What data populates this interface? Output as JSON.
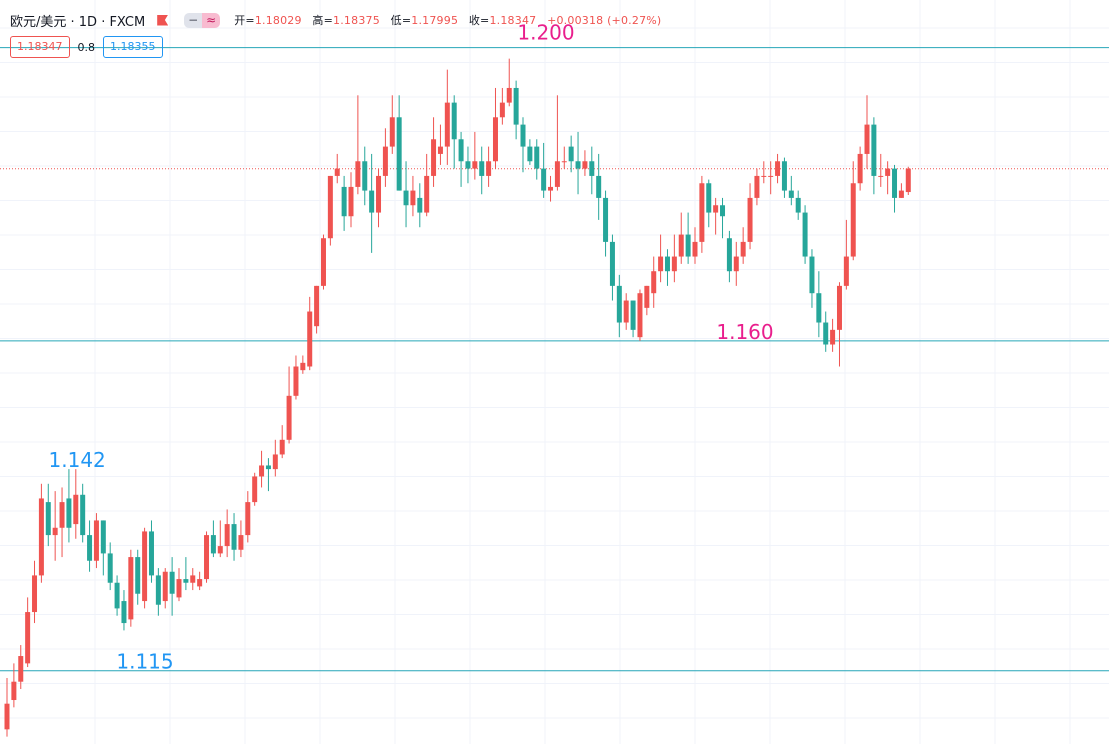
{
  "header": {
    "symbol": "欧元/美元 · 1D · FXCM",
    "ohlc": {
      "open_label": "开=",
      "open": "1.18029",
      "high_label": "高=",
      "high": "1.18375",
      "low_label": "低=",
      "low": "1.17995",
      "close_label": "收=",
      "close": "1.18347",
      "change": "+0.00318 (+0.27%)"
    }
  },
  "quote": {
    "bid": "1.18347",
    "spread": "0.8",
    "ask": "1.18355"
  },
  "icons": {
    "flag": "flag-icon",
    "hide": "minus-icon",
    "compare": "wave-icon"
  },
  "colors": {
    "up": "#ef5350",
    "down": "#26a69a",
    "level_line": "#26a6b8",
    "magenta_label": "#e91e8c",
    "blue_label": "#2196f3"
  },
  "chart_data": {
    "type": "candlestick",
    "y_range": [
      1.105,
      1.2065
    ],
    "current_price": 1.18347,
    "levels": [
      {
        "value": 1.2,
        "label": "1.200",
        "color": "#e91e8c"
      },
      {
        "value": 1.16,
        "label": "1.160",
        "color": "#e91e8c"
      },
      {
        "value": 1.115,
        "label": "1.115",
        "color": "#2196f3"
      }
    ],
    "annotations": [
      {
        "label": "1.142",
        "value": 1.142,
        "index": 7,
        "color": "#2196f3"
      }
    ],
    "candles": [
      [
        1.107,
        1.1105,
        1.106,
        1.114
      ],
      [
        1.111,
        1.1135,
        1.11,
        1.116
      ],
      [
        1.1135,
        1.117,
        1.1125,
        1.1185
      ],
      [
        1.116,
        1.123,
        1.1155,
        1.125
      ],
      [
        1.123,
        1.128,
        1.1215,
        1.13
      ],
      [
        1.128,
        1.1385,
        1.127,
        1.1405
      ],
      [
        1.138,
        1.1335,
        1.132,
        1.1405
      ],
      [
        1.1335,
        1.1345,
        1.13,
        1.1395
      ],
      [
        1.1345,
        1.138,
        1.1305,
        1.14
      ],
      [
        1.1385,
        1.1345,
        1.1325,
        1.1425
      ],
      [
        1.135,
        1.139,
        1.133,
        1.1425
      ],
      [
        1.139,
        1.1335,
        1.1325,
        1.1405
      ],
      [
        1.1335,
        1.13,
        1.1285,
        1.1355
      ],
      [
        1.13,
        1.1355,
        1.129,
        1.1365
      ],
      [
        1.1355,
        1.131,
        1.128,
        1.1355
      ],
      [
        1.131,
        1.127,
        1.126,
        1.1325
      ],
      [
        1.127,
        1.1235,
        1.1225,
        1.128
      ],
      [
        1.1245,
        1.1215,
        1.1205,
        1.126
      ],
      [
        1.122,
        1.1305,
        1.121,
        1.1315
      ],
      [
        1.1305,
        1.1255,
        1.124,
        1.1315
      ],
      [
        1.1245,
        1.134,
        1.1235,
        1.1345
      ],
      [
        1.134,
        1.128,
        1.127,
        1.1355
      ],
      [
        1.128,
        1.124,
        1.1225,
        1.129
      ],
      [
        1.1245,
        1.1285,
        1.1235,
        1.129
      ],
      [
        1.1285,
        1.1255,
        1.1225,
        1.1305
      ],
      [
        1.125,
        1.1275,
        1.1245,
        1.129
      ],
      [
        1.1275,
        1.127,
        1.126,
        1.1305
      ],
      [
        1.127,
        1.128,
        1.126,
        1.129
      ],
      [
        1.1265,
        1.1275,
        1.126,
        1.1285
      ],
      [
        1.1275,
        1.1335,
        1.127,
        1.134
      ],
      [
        1.1335,
        1.131,
        1.1305,
        1.1355
      ],
      [
        1.131,
        1.132,
        1.1305,
        1.1355
      ],
      [
        1.132,
        1.135,
        1.1305,
        1.137
      ],
      [
        1.135,
        1.1315,
        1.13,
        1.1365
      ],
      [
        1.1315,
        1.1335,
        1.1305,
        1.1355
      ],
      [
        1.1335,
        1.138,
        1.1325,
        1.1395
      ],
      [
        1.138,
        1.1415,
        1.1375,
        1.142
      ],
      [
        1.1415,
        1.143,
        1.14,
        1.145
      ],
      [
        1.143,
        1.1425,
        1.1395,
        1.144
      ],
      [
        1.1425,
        1.1445,
        1.1415,
        1.1465
      ],
      [
        1.1445,
        1.1465,
        1.144,
        1.1485
      ],
      [
        1.1465,
        1.1525,
        1.146,
        1.1565
      ],
      [
        1.1525,
        1.1565,
        1.152,
        1.158
      ],
      [
        1.156,
        1.157,
        1.1555,
        1.158
      ],
      [
        1.1565,
        1.164,
        1.156,
        1.166
      ],
      [
        1.162,
        1.1675,
        1.161,
        1.1675
      ],
      [
        1.1675,
        1.174,
        1.167,
        1.1745
      ],
      [
        1.174,
        1.1825,
        1.173,
        1.1825
      ],
      [
        1.1825,
        1.1835,
        1.1815,
        1.1855
      ],
      [
        1.181,
        1.177,
        1.175,
        1.1825
      ],
      [
        1.177,
        1.181,
        1.1755,
        1.183
      ],
      [
        1.181,
        1.1845,
        1.18,
        1.1935
      ],
      [
        1.1845,
        1.1805,
        1.1785,
        1.1865
      ],
      [
        1.1805,
        1.1775,
        1.172,
        1.1855
      ],
      [
        1.1775,
        1.1825,
        1.1755,
        1.1835
      ],
      [
        1.1825,
        1.1865,
        1.181,
        1.189
      ],
      [
        1.1865,
        1.1905,
        1.1855,
        1.1935
      ],
      [
        1.1905,
        1.1805,
        1.1805,
        1.1935
      ],
      [
        1.1805,
        1.1785,
        1.1755,
        1.1845
      ],
      [
        1.1785,
        1.1805,
        1.177,
        1.1825
      ],
      [
        1.1795,
        1.1775,
        1.1755,
        1.1815
      ],
      [
        1.1775,
        1.1825,
        1.177,
        1.1855
      ],
      [
        1.1825,
        1.1875,
        1.181,
        1.1905
      ],
      [
        1.1855,
        1.1865,
        1.184,
        1.1895
      ],
      [
        1.1865,
        1.1925,
        1.184,
        1.197
      ],
      [
        1.1925,
        1.1875,
        1.1835,
        1.1935
      ],
      [
        1.1875,
        1.1845,
        1.181,
        1.1885
      ],
      [
        1.1845,
        1.1835,
        1.1815,
        1.1865
      ],
      [
        1.1835,
        1.1845,
        1.182,
        1.1885
      ],
      [
        1.1845,
        1.1825,
        1.18,
        1.1865
      ],
      [
        1.1825,
        1.1845,
        1.181,
        1.1865
      ],
      [
        1.1845,
        1.1905,
        1.1835,
        1.1945
      ],
      [
        1.1905,
        1.1925,
        1.1895,
        1.1945
      ],
      [
        1.1925,
        1.1945,
        1.192,
        1.1985
      ],
      [
        1.1945,
        1.1895,
        1.1875,
        1.1955
      ],
      [
        1.1895,
        1.1865,
        1.183,
        1.1905
      ],
      [
        1.1865,
        1.1845,
        1.184,
        1.1875
      ],
      [
        1.1865,
        1.1835,
        1.182,
        1.1875
      ],
      [
        1.1835,
        1.1805,
        1.1795,
        1.187
      ],
      [
        1.1805,
        1.181,
        1.179,
        1.1825
      ],
      [
        1.181,
        1.1845,
        1.1805,
        1.1935
      ],
      [
        1.1845,
        1.1845,
        1.1835,
        1.1865
      ],
      [
        1.1865,
        1.1845,
        1.183,
        1.188
      ],
      [
        1.1845,
        1.1835,
        1.18,
        1.1885
      ],
      [
        1.1835,
        1.1845,
        1.1825,
        1.186
      ],
      [
        1.1845,
        1.1825,
        1.18,
        1.1865
      ],
      [
        1.1825,
        1.1795,
        1.1765,
        1.1855
      ],
      [
        1.1795,
        1.1735,
        1.1715,
        1.1805
      ],
      [
        1.1735,
        1.1675,
        1.1655,
        1.1745
      ],
      [
        1.1675,
        1.1625,
        1.1605,
        1.169
      ],
      [
        1.1625,
        1.1655,
        1.1615,
        1.1665
      ],
      [
        1.1655,
        1.1615,
        1.1605,
        1.1655
      ],
      [
        1.1605,
        1.1665,
        1.16,
        1.167
      ],
      [
        1.1645,
        1.1675,
        1.1635,
        1.1675
      ],
      [
        1.1665,
        1.1695,
        1.1645,
        1.1715
      ],
      [
        1.1695,
        1.1715,
        1.168,
        1.1745
      ],
      [
        1.1715,
        1.1695,
        1.1675,
        1.1725
      ],
      [
        1.1695,
        1.1715,
        1.168,
        1.1745
      ],
      [
        1.1715,
        1.1745,
        1.1705,
        1.1775
      ],
      [
        1.1745,
        1.1715,
        1.1705,
        1.1775
      ],
      [
        1.1715,
        1.1735,
        1.1705,
        1.1755
      ],
      [
        1.1735,
        1.1815,
        1.172,
        1.1825
      ],
      [
        1.1815,
        1.1775,
        1.1755,
        1.182
      ],
      [
        1.1775,
        1.1785,
        1.1745,
        1.1795
      ],
      [
        1.1785,
        1.177,
        1.174,
        1.1795
      ],
      [
        1.174,
        1.1695,
        1.168,
        1.175
      ],
      [
        1.1695,
        1.1715,
        1.1675,
        1.1735
      ],
      [
        1.1715,
        1.1735,
        1.1705,
        1.1755
      ],
      [
        1.1735,
        1.1795,
        1.1725,
        1.1815
      ],
      [
        1.1795,
        1.1825,
        1.1785,
        1.1835
      ],
      [
        1.1825,
        1.1825,
        1.1815,
        1.1845
      ],
      [
        1.1825,
        1.1825,
        1.18,
        1.1845
      ],
      [
        1.1825,
        1.1845,
        1.1815,
        1.1855
      ],
      [
        1.1845,
        1.1805,
        1.1795,
        1.185
      ],
      [
        1.1805,
        1.1795,
        1.1785,
        1.1825
      ],
      [
        1.1795,
        1.1775,
        1.1765,
        1.1805
      ],
      [
        1.1775,
        1.1715,
        1.1705,
        1.1785
      ],
      [
        1.1715,
        1.1665,
        1.1645,
        1.1725
      ],
      [
        1.1665,
        1.1625,
        1.1605,
        1.1695
      ],
      [
        1.1625,
        1.1595,
        1.1585,
        1.164
      ],
      [
        1.1595,
        1.1615,
        1.1585,
        1.163
      ],
      [
        1.1615,
        1.1675,
        1.1565,
        1.168
      ],
      [
        1.1675,
        1.1715,
        1.167,
        1.1765
      ],
      [
        1.1715,
        1.1815,
        1.171,
        1.1845
      ],
      [
        1.1815,
        1.1855,
        1.1805,
        1.1865
      ],
      [
        1.1855,
        1.1895,
        1.1835,
        1.1935
      ],
      [
        1.1895,
        1.1825,
        1.18,
        1.1905
      ],
      [
        1.1825,
        1.1825,
        1.181,
        1.1855
      ],
      [
        1.1825,
        1.1835,
        1.18,
        1.1845
      ],
      [
        1.1835,
        1.1795,
        1.1775,
        1.184
      ],
      [
        1.1795,
        1.1805,
        1.1795,
        1.1815
      ],
      [
        1.1803,
        1.1835,
        1.1799,
        1.18375
      ]
    ]
  }
}
